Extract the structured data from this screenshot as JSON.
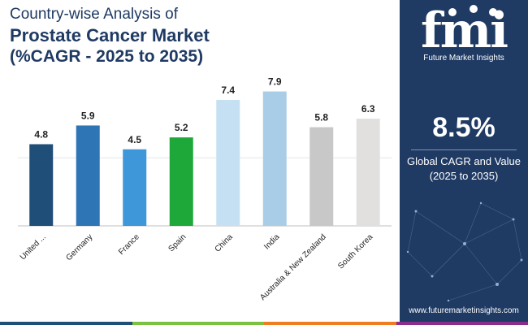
{
  "header": {
    "line1": "Country-wise Analysis of",
    "line2": "Prostate Cancer Market",
    "line3": "(%CAGR - 2025 to 2035)"
  },
  "chart_data": {
    "type": "bar",
    "title": "Prostate Cancer Market (%CAGR - 2025 to 2035)",
    "categories": [
      "United ...",
      "Germany",
      "France",
      "Spain",
      "China",
      "India",
      "Australia & New Zealand",
      "South Korea"
    ],
    "values": [
      4.8,
      5.9,
      4.5,
      5.2,
      7.4,
      7.9,
      5.8,
      6.3
    ],
    "value_labels": [
      "4.8",
      "5.9",
      "4.5",
      "5.2",
      "7.4",
      "7.9",
      "5.8",
      "6.3"
    ],
    "colors": [
      "#1f4e79",
      "#2e75b6",
      "#3d97d9",
      "#1fa83a",
      "#c5e0f2",
      "#a9cde6",
      "#c8c8c8",
      "#e2dfdf"
    ],
    "ylim": [
      0,
      8.5
    ],
    "grid": true,
    "xlabel": "",
    "ylabel": ""
  },
  "panel": {
    "logo_text": "fmi",
    "logo_sub": "Future Market Insights",
    "cagr_value": "8.5%",
    "cagr_label_line1": "Global CAGR and Value",
    "cagr_label_line2": "(2025 to 2035)",
    "website": "www.futuremarketinsights.com",
    "background": "#1f3a63"
  },
  "bottom_bar_colors": [
    "#1f4e79",
    "#7cc242",
    "#ef7d22",
    "#8b2d8f"
  ]
}
